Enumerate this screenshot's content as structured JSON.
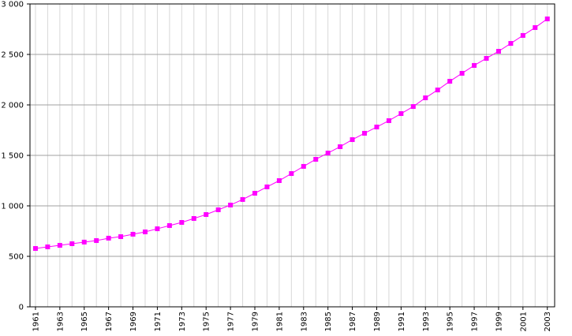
{
  "chart_data": {
    "type": "line",
    "x": [
      1961,
      1962,
      1963,
      1964,
      1965,
      1966,
      1967,
      1968,
      1969,
      1970,
      1971,
      1972,
      1973,
      1974,
      1975,
      1976,
      1977,
      1978,
      1979,
      1980,
      1981,
      1982,
      1983,
      1984,
      1985,
      1986,
      1987,
      1988,
      1989,
      1990,
      1991,
      1992,
      1993,
      1994,
      1995,
      1996,
      1997,
      1998,
      1999,
      2000,
      2001,
      2002,
      2003
    ],
    "series": [
      {
        "color": "#ff00ff",
        "values": [
          578,
          594,
          609,
          625,
          641,
          656,
          680,
          695,
          719,
          742,
          773,
          805,
          836,
          875,
          914,
          961,
          1008,
          1063,
          1125,
          1188,
          1250,
          1320,
          1391,
          1461,
          1523,
          1586,
          1656,
          1719,
          1781,
          1844,
          1914,
          1984,
          2070,
          2148,
          2234,
          2313,
          2391,
          2461,
          2531,
          2609,
          2688,
          2766,
          2852
        ]
      }
    ],
    "xlim": [
      1960.55,
      2003.6
    ],
    "xticks": [
      1961,
      1963,
      1965,
      1967,
      1969,
      1971,
      1973,
      1975,
      1977,
      1979,
      1981,
      1983,
      1985,
      1987,
      1989,
      1991,
      1993,
      1995,
      1997,
      1999,
      2001,
      2003
    ],
    "ylim": [
      0,
      3000
    ],
    "yticks": [
      0,
      500,
      {
        "value": 1000,
        "label": "1 000"
      },
      {
        "value": 1500,
        "label": "1 500"
      },
      {
        "value": 2000,
        "label": "2 000"
      },
      {
        "value": 2500,
        "label": "2 500"
      },
      {
        "value": 3000,
        "label": "3 000"
      }
    ],
    "grid": true
  }
}
